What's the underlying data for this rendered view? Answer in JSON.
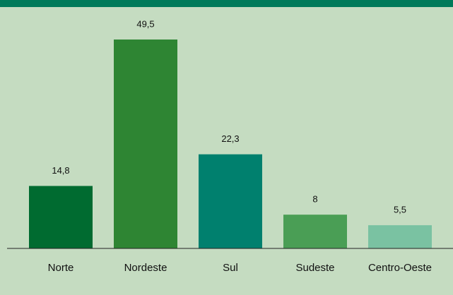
{
  "chart_data": {
    "type": "bar",
    "categories": [
      "Norte",
      "Nordeste",
      "Sul",
      "Sudeste",
      "Centro-Oeste"
    ],
    "values": [
      14.8,
      49.5,
      22.3,
      8,
      5.5
    ],
    "value_labels": [
      "14,8",
      "49,5",
      "22,3",
      "8",
      "5,5"
    ],
    "colors": [
      "#006b30",
      "#2e8533",
      "#00806e",
      "#4a9e55",
      "#7ac2a2"
    ]
  }
}
